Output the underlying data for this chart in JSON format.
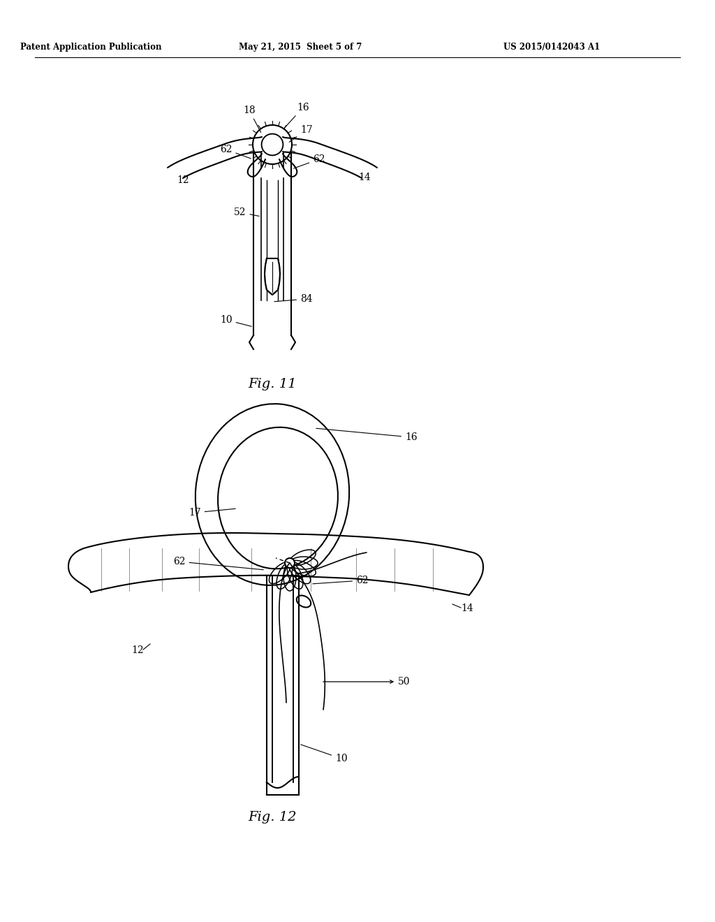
{
  "title_left": "Patent Application Publication",
  "title_mid": "May 21, 2015  Sheet 5 of 7",
  "title_right": "US 2015/0142043 A1",
  "fig11_label": "Fig. 11",
  "fig12_label": "Fig. 12",
  "bg_color": "#ffffff",
  "line_color": "#000000",
  "lw": 1.5
}
